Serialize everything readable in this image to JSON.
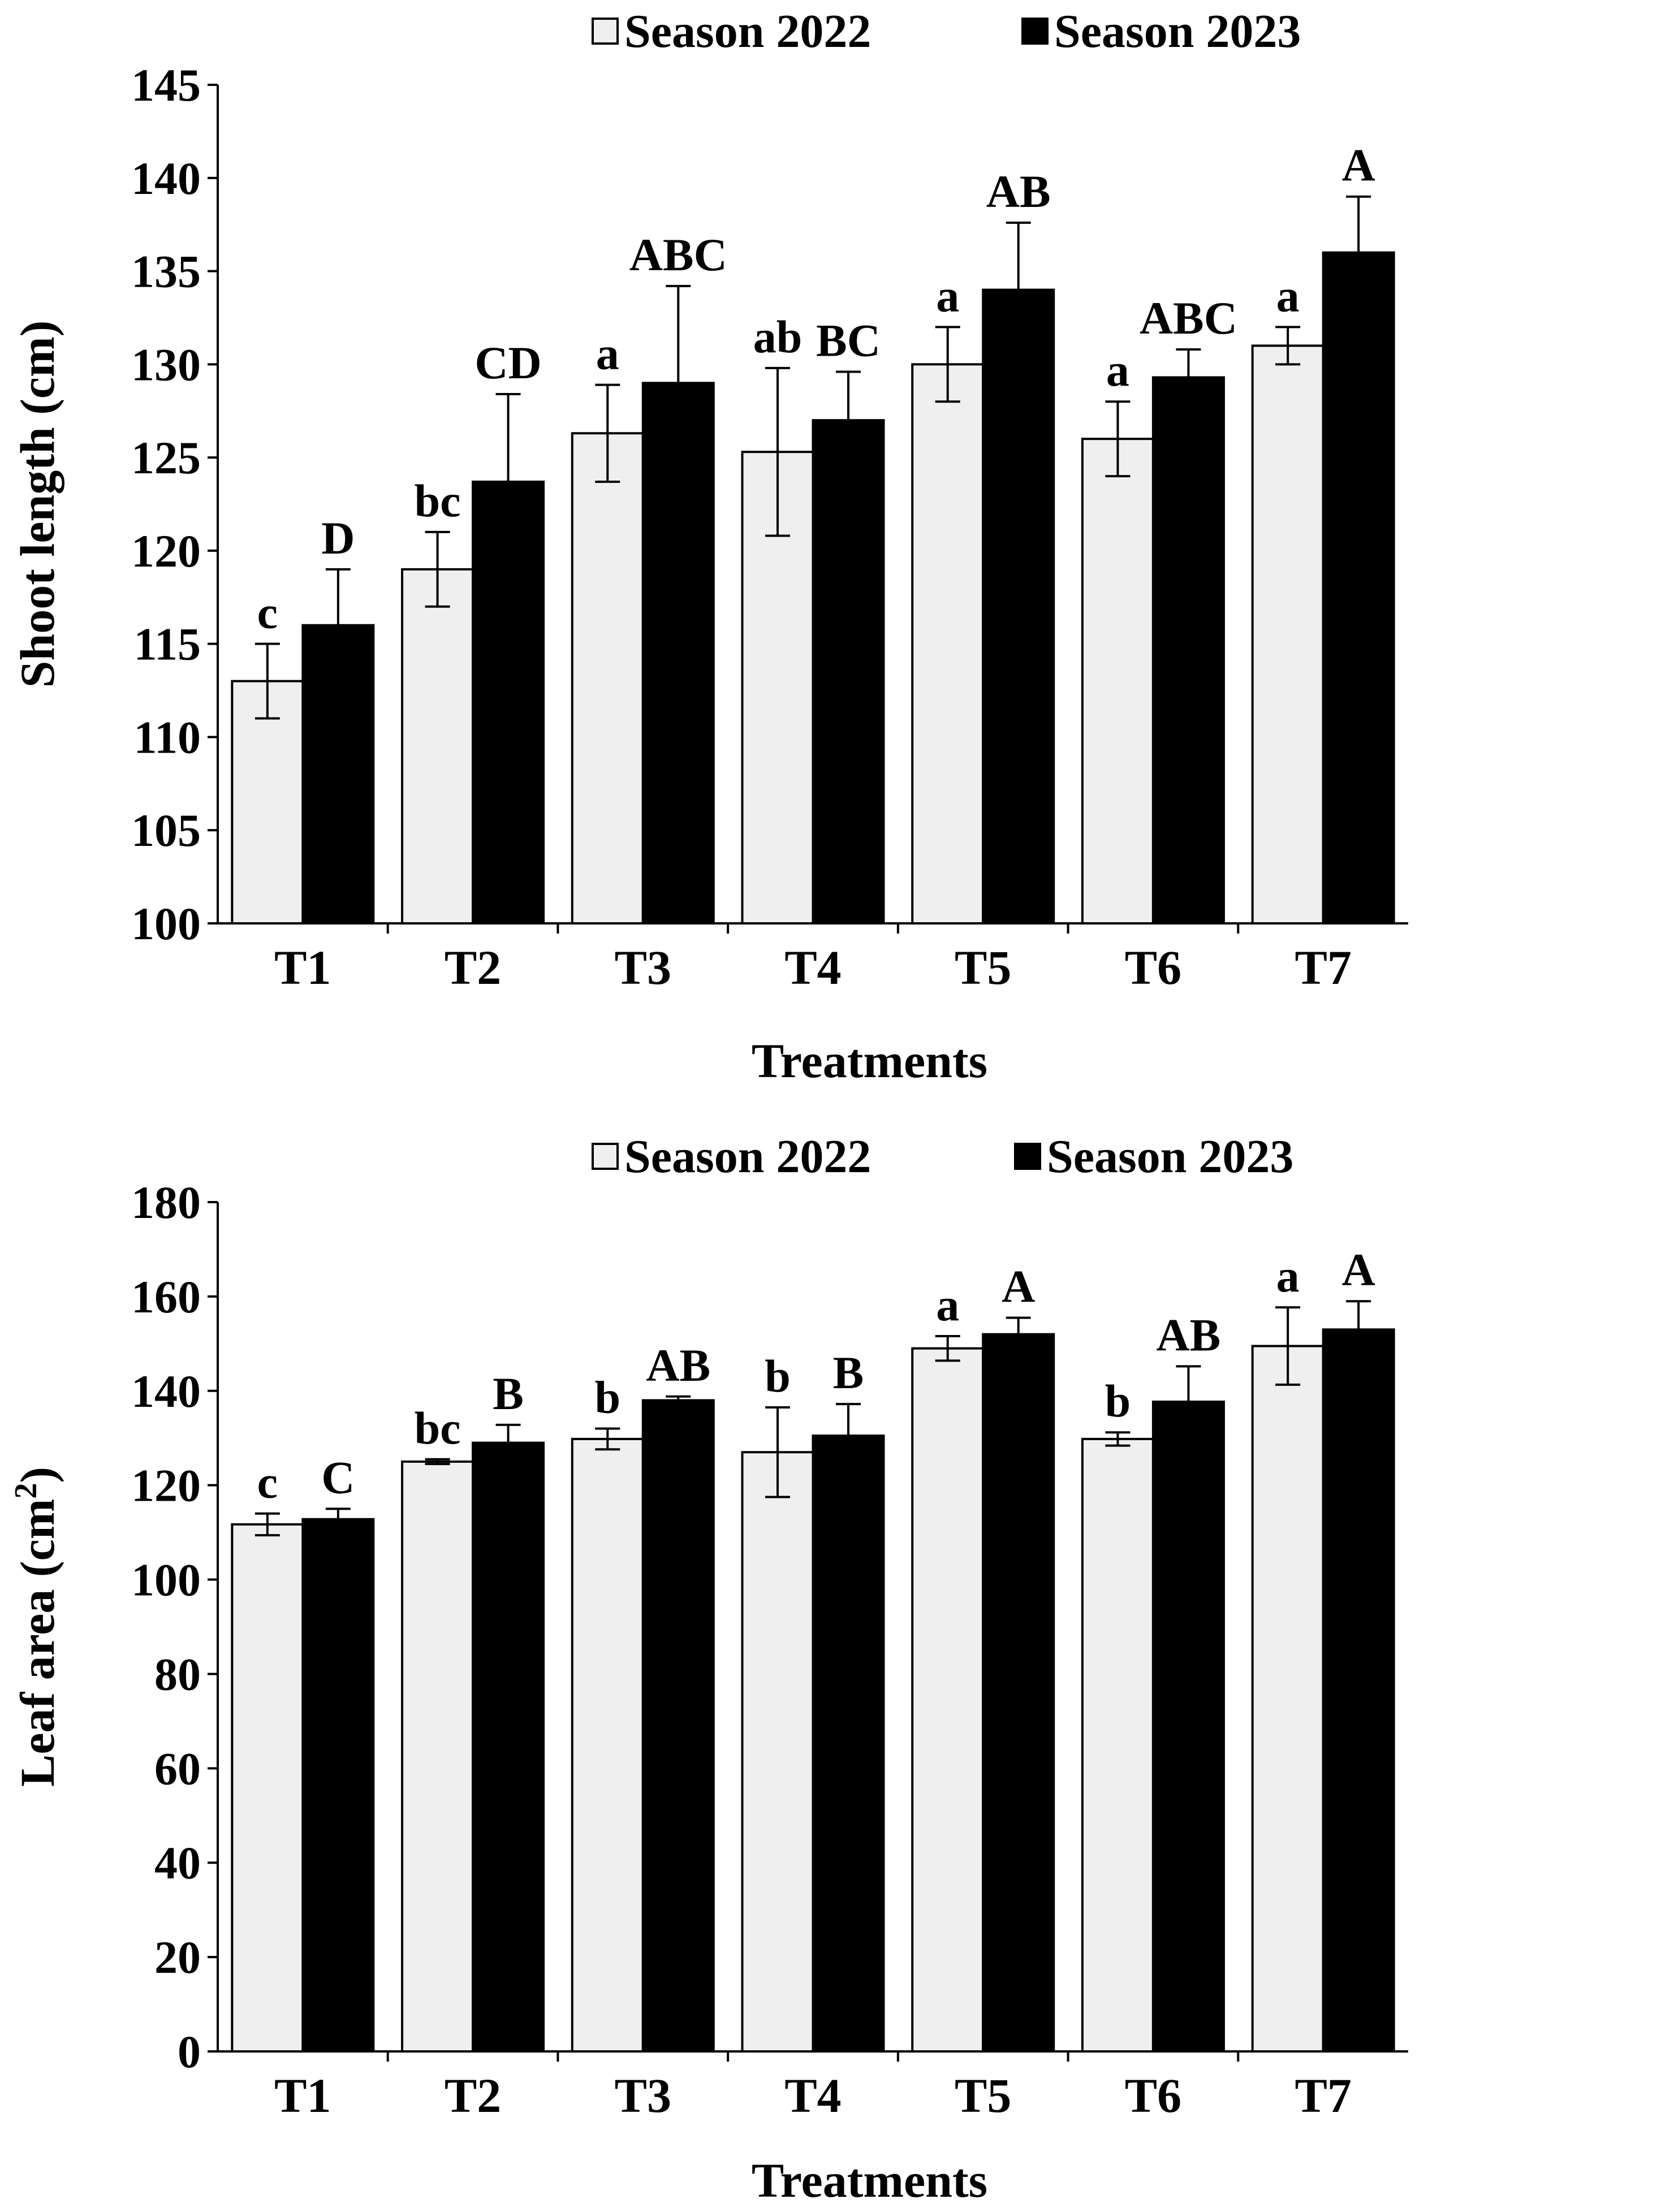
{
  "colors": {
    "season_2022": "#efefef",
    "season_2023": "#000000",
    "axis": "#000000"
  },
  "chart_data": [
    {
      "type": "bar",
      "id": "shoot",
      "title": "",
      "xlabel": "Treatments",
      "ylabel": "Shoot length (cm)",
      "ylabel_sup": "",
      "ylabel_tail": "",
      "ylim": [
        100,
        145
      ],
      "ytick_step": 5,
      "yticks": [
        "100",
        "105",
        "110",
        "115",
        "120",
        "125",
        "130",
        "135",
        "140",
        "145"
      ],
      "categories": [
        "T1",
        "T2",
        "T3",
        "T4",
        "T5",
        "T6",
        "T7"
      ],
      "legend": {
        "position": "top",
        "entries": [
          "Season 2022",
          "Season 2023"
        ]
      },
      "series": [
        {
          "name": "Season 2022",
          "values": [
            113.0,
            119.0,
            126.3,
            125.3,
            130.0,
            126.0,
            131.0
          ],
          "errors": [
            2.0,
            2.0,
            2.6,
            4.5,
            2.0,
            2.0,
            1.0
          ],
          "letters": [
            "c",
            "bc",
            "a",
            "ab",
            "a",
            "a",
            "a"
          ]
        },
        {
          "name": "Season 2023",
          "values": [
            116.0,
            123.7,
            129.0,
            127.0,
            134.0,
            129.3,
            136.0
          ],
          "errors": [
            3.0,
            4.7,
            5.2,
            2.6,
            3.6,
            1.5,
            3.0
          ],
          "letters": [
            "D",
            "CD",
            "ABC",
            "BC",
            "AB",
            "ABC",
            "A"
          ]
        }
      ]
    },
    {
      "type": "bar",
      "id": "leaf",
      "title": "",
      "xlabel": "Treatments",
      "ylabel": "Leaf area (cm",
      "ylabel_sup": "2",
      "ylabel_tail": ")",
      "ylim": [
        0,
        180
      ],
      "ytick_step": 20,
      "yticks": [
        "0",
        "20",
        "40",
        "60",
        "80",
        "100",
        "120",
        "140",
        "160",
        "180"
      ],
      "categories": [
        "T1",
        "T2",
        "T3",
        "T4",
        "T5",
        "T6",
        "T7"
      ],
      "legend": {
        "position": "top",
        "entries": [
          "Season 2022",
          "Season 2023"
        ]
      },
      "series": [
        {
          "name": "Season 2022",
          "values": [
            111.7,
            125.0,
            129.8,
            127.0,
            149.0,
            129.8,
            149.5
          ],
          "errors": [
            2.3,
            0.5,
            2.2,
            9.5,
            2.6,
            1.4,
            8.2
          ],
          "letters": [
            "c",
            "bc",
            "b",
            "b",
            "a",
            "b",
            "a"
          ]
        },
        {
          "name": "Season 2023",
          "values": [
            112.8,
            129.0,
            138.0,
            130.5,
            152.0,
            137.7,
            153.0
          ],
          "errors": [
            2.2,
            3.8,
            0.8,
            6.7,
            3.5,
            7.5,
            6.0
          ],
          "letters": [
            "C",
            "B",
            "AB",
            "B",
            "A",
            "AB",
            "A"
          ]
        }
      ]
    }
  ]
}
